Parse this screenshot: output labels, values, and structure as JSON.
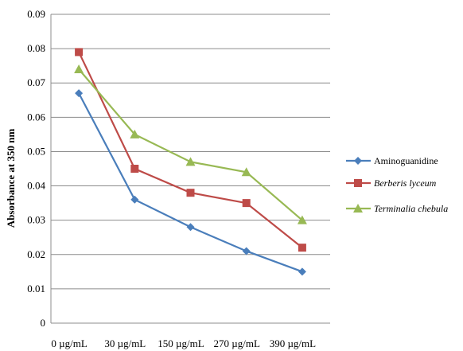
{
  "chart_data": {
    "type": "line",
    "title": "",
    "xlabel": "",
    "ylabel": "Absorbance at 350 nm",
    "categories": [
      "0 µg/mL",
      "30 µg/mL",
      "150 µg/mL",
      "270 µg/mL",
      "390 µg/mL"
    ],
    "ylim": [
      0,
      0.09
    ],
    "yticks": [
      "0",
      "0.01",
      "0.02",
      "0.03",
      "0.04",
      "0.05",
      "0.06",
      "0.07",
      "0.08",
      "0.09"
    ],
    "grid": true,
    "legend_position": "right",
    "series": [
      {
        "name": "Aminoguanidine",
        "color": "#4a7ebb",
        "marker": "diamond",
        "italic": false,
        "values": [
          0.067,
          0.036,
          0.028,
          0.021,
          0.015
        ]
      },
      {
        "name": "Berberis lyceum",
        "color": "#be4b48",
        "marker": "square",
        "italic": true,
        "values": [
          0.079,
          0.045,
          0.038,
          0.035,
          0.022
        ]
      },
      {
        "name": "Terminalia chebula",
        "color": "#98b954",
        "marker": "triangle",
        "italic": true,
        "values": [
          0.074,
          0.055,
          0.047,
          0.044,
          0.03
        ]
      }
    ]
  }
}
